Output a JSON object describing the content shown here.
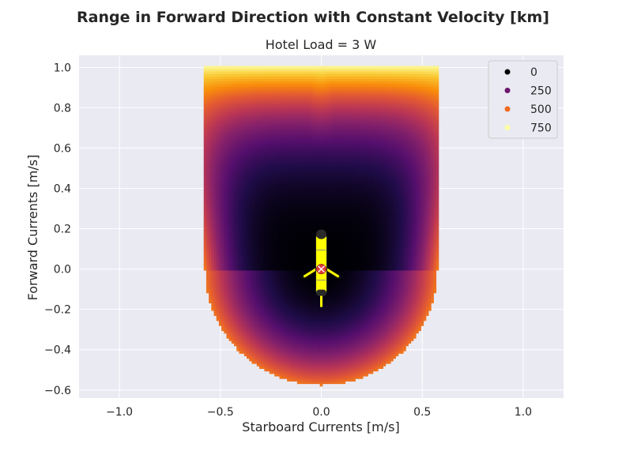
{
  "figure": {
    "suptitle": "Range in Forward Direction with Constant Velocity [km]"
  },
  "chart_data": {
    "type": "heatmap",
    "title": "Hotel Load = 3 W",
    "xlabel": "Starboard Currents [m/s]",
    "ylabel": "Forward Currents [m/s]",
    "xlim": [
      -1.2,
      1.2
    ],
    "ylim": [
      -0.64,
      1.06
    ],
    "xticks": [
      -1.0,
      -0.5,
      0.0,
      0.5,
      1.0
    ],
    "xtick_labels": [
      "−1.0",
      "−0.5",
      "0.0",
      "0.5",
      "1.0"
    ],
    "yticks": [
      -0.6,
      -0.4,
      -0.2,
      0.0,
      0.2,
      0.4,
      0.6,
      0.8,
      1.0
    ],
    "ytick_labels": [
      "−0.6",
      "−0.4",
      "−0.2",
      "0.0",
      "0.2",
      "0.4",
      "0.6",
      "0.8",
      "1.0"
    ],
    "grid": true,
    "colormap": "inferno",
    "colorscale_range": [
      0,
      800
    ],
    "legend": {
      "placement": "top-right",
      "entries": [
        {
          "label": "0",
          "value": 0,
          "color": "#000004"
        },
        {
          "label": "250",
          "value": 250,
          "color": "#6a176e"
        },
        {
          "label": "500",
          "value": 500,
          "color": "#f06a21"
        },
        {
          "label": "750",
          "value": 750,
          "color": "#fcfea4"
        }
      ]
    },
    "domain": {
      "starboard_half_width": 0.575,
      "forward_max": 1.0,
      "forward_min": -0.575
    },
    "key_values": [
      {
        "starboard": 0.0,
        "forward": 1.0,
        "range": 780
      },
      {
        "starboard": 0.0,
        "forward": 0.0,
        "range": 0
      },
      {
        "starboard": 0.0,
        "forward": -0.575,
        "range": 480
      },
      {
        "starboard": 0.575,
        "forward": 0.0,
        "range": 560
      },
      {
        "starboard": -0.575,
        "forward": 0.0,
        "range": 560
      }
    ],
    "overlay": {
      "icon": "glider-icon",
      "position": [
        0.0,
        0.0
      ],
      "marker": "red-x-circle"
    }
  },
  "style": {
    "axes_background": "#eaeaf2",
    "grid_color": "#ffffff",
    "text_color": "#262626",
    "glider_color": "#ffff00",
    "marker_color": "#e0403c"
  }
}
